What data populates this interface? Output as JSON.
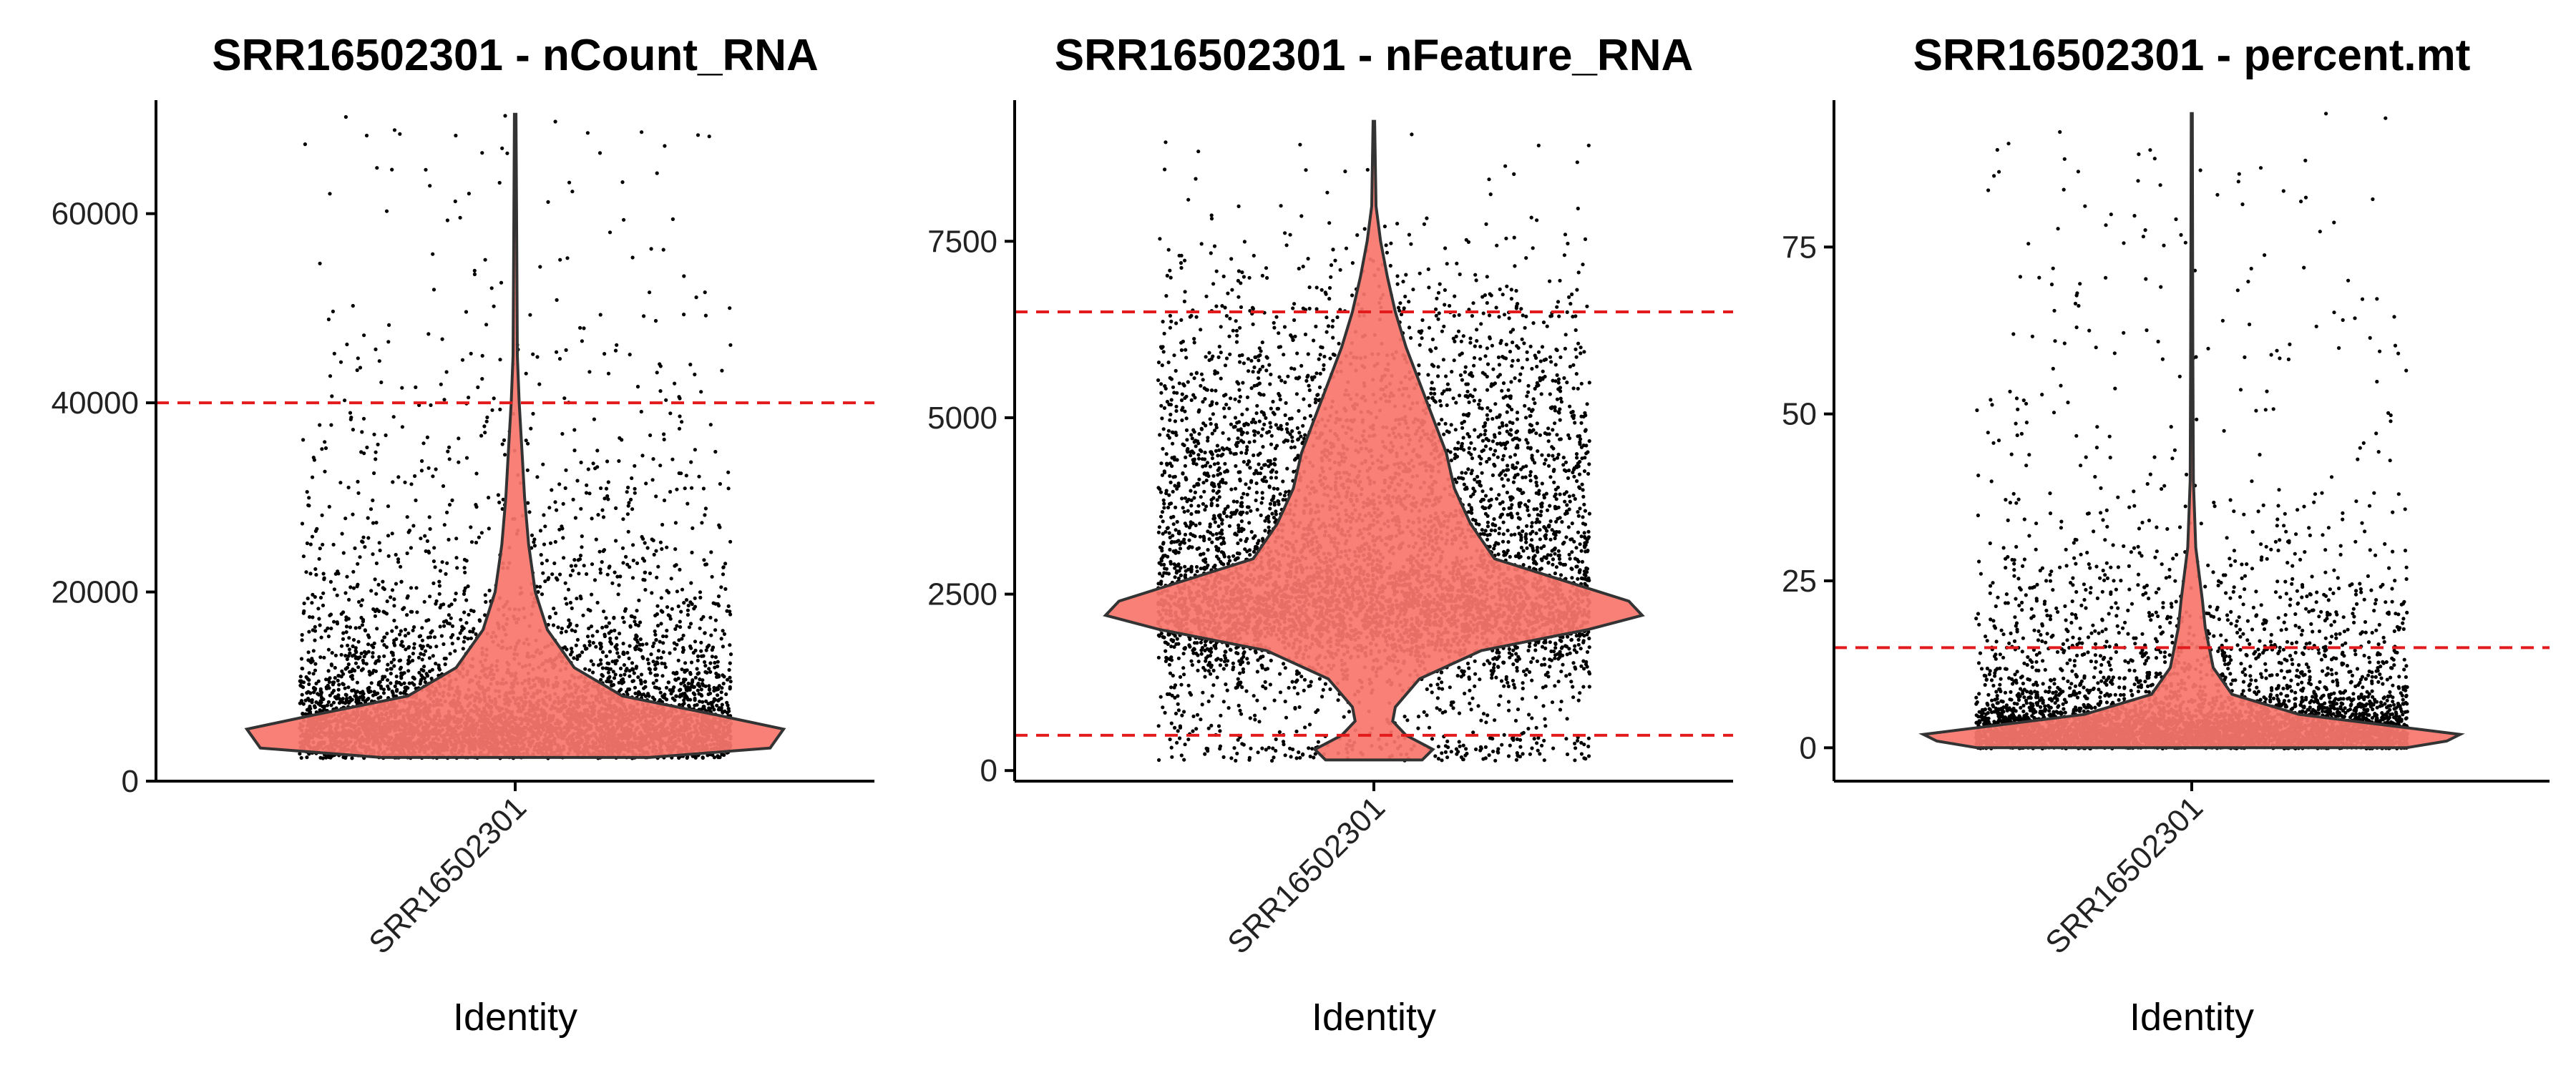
{
  "colors": {
    "violin_fill": "#F8766D",
    "threshold": "#E31A1C",
    "point": "#000000"
  },
  "chart_data": [
    {
      "type": "violin",
      "title": "SRR16502301 - nCount_RNA",
      "xlabel": "Identity",
      "categories": [
        "SRR16502301"
      ],
      "ylim": [
        0,
        72000
      ],
      "yticks": [
        0,
        20000,
        40000,
        60000
      ],
      "thresholds": [
        40000
      ],
      "point_range": [
        2500,
        70500
      ],
      "violin_profile": [
        [
          2500,
          0.5
        ],
        [
          3500,
          0.95
        ],
        [
          5500,
          1.0
        ],
        [
          7000,
          0.75
        ],
        [
          9000,
          0.4
        ],
        [
          12000,
          0.22
        ],
        [
          16000,
          0.12
        ],
        [
          20000,
          0.075
        ],
        [
          25000,
          0.05
        ],
        [
          30000,
          0.035
        ],
        [
          35000,
          0.025
        ],
        [
          40000,
          0.015
        ],
        [
          45000,
          0.008
        ],
        [
          55000,
          0.006
        ],
        [
          70500,
          0.003
        ]
      ]
    },
    {
      "type": "violin",
      "title": "SRR16502301 - nFeature_RNA",
      "xlabel": "Identity",
      "categories": [
        "SRR16502301"
      ],
      "ylim": [
        -150,
        9500
      ],
      "yticks": [
        0,
        2500,
        5000,
        7500
      ],
      "thresholds": [
        6500,
        500
      ],
      "point_range": [
        150,
        9200
      ],
      "violin_profile": [
        [
          150,
          0.18
        ],
        [
          300,
          0.22
        ],
        [
          500,
          0.12
        ],
        [
          700,
          0.07
        ],
        [
          900,
          0.08
        ],
        [
          1300,
          0.17
        ],
        [
          1700,
          0.4
        ],
        [
          2000,
          0.8
        ],
        [
          2200,
          1.0
        ],
        [
          2400,
          0.95
        ],
        [
          2700,
          0.7
        ],
        [
          3000,
          0.45
        ],
        [
          3500,
          0.36
        ],
        [
          4000,
          0.3
        ],
        [
          4500,
          0.27
        ],
        [
          5000,
          0.22
        ],
        [
          5500,
          0.17
        ],
        [
          6000,
          0.12
        ],
        [
          6500,
          0.08
        ],
        [
          7000,
          0.05
        ],
        [
          7500,
          0.025
        ],
        [
          8000,
          0.008
        ],
        [
          9200,
          0.003
        ]
      ]
    },
    {
      "type": "violin",
      "title": "SRR16502301 - percent.mt",
      "xlabel": "Identity",
      "categories": [
        "SRR16502301"
      ],
      "ylim": [
        -5,
        97
      ],
      "yticks": [
        0,
        25,
        50,
        75
      ],
      "thresholds": [
        15
      ],
      "point_range": [
        0,
        95
      ],
      "violin_profile": [
        [
          0,
          0.8
        ],
        [
          1,
          0.95
        ],
        [
          2,
          1.0
        ],
        [
          3,
          0.8
        ],
        [
          5,
          0.4
        ],
        [
          8,
          0.15
        ],
        [
          12,
          0.08
        ],
        [
          18,
          0.05
        ],
        [
          22,
          0.04
        ],
        [
          30,
          0.015
        ],
        [
          40,
          0.006
        ],
        [
          60,
          0.004
        ],
        [
          95,
          0.002
        ]
      ]
    }
  ]
}
